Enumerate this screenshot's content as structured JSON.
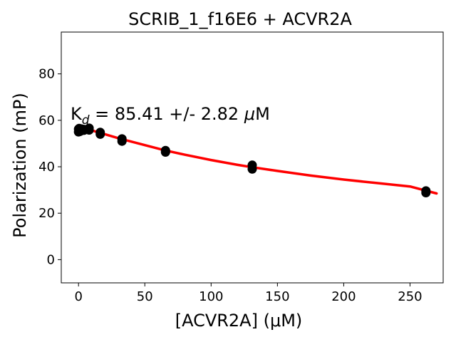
{
  "chart_data": {
    "type": "scatter",
    "title": "SCRIB_1_f16E6 + ACVR2A",
    "xlabel": "[ACVR2A] (μM)",
    "ylabel": "Polarization (mP)",
    "xlim": [
      -13,
      275
    ],
    "ylim": [
      -10,
      98
    ],
    "xticks": [
      0,
      50,
      100,
      150,
      200,
      250
    ],
    "yticks": [
      0,
      20,
      40,
      60,
      80
    ],
    "grid": false,
    "annotation": {
      "prefix": "K",
      "subscript": "d",
      "text": " = 85.41 +/- 2.82 ",
      "unit_mu": "μ",
      "unit": "M"
    },
    "series": [
      {
        "kind": "points",
        "color": "#000000",
        "x": [
          0,
          0,
          0.5,
          0.5,
          1,
          1,
          2,
          2,
          4,
          4,
          8,
          8,
          16.4,
          16.4,
          32.8,
          32.8,
          65.6,
          65.6,
          131,
          131,
          262,
          262
        ],
        "y": [
          55,
          56.2,
          55.5,
          56.5,
          55.2,
          56,
          55.6,
          56.3,
          55.7,
          56.1,
          55.8,
          56.6,
          54,
          54.8,
          51,
          52,
          46.3,
          47,
          39,
          40.7,
          28.8,
          29.6
        ]
      },
      {
        "kind": "fit",
        "color": "#ff0000",
        "x": [
          0,
          5,
          10,
          15,
          20,
          30,
          40,
          50,
          65,
          80,
          100,
          120,
          131,
          150,
          175,
          200,
          225,
          250,
          270
        ],
        "y": [
          57.5,
          56.6,
          55.7,
          54.8,
          54.0,
          52.3,
          50.8,
          49.3,
          47.1,
          45.2,
          42.9,
          40.8,
          39.8,
          38.2,
          36.2,
          34.5,
          33.0,
          31.5,
          28.5
        ]
      }
    ]
  }
}
